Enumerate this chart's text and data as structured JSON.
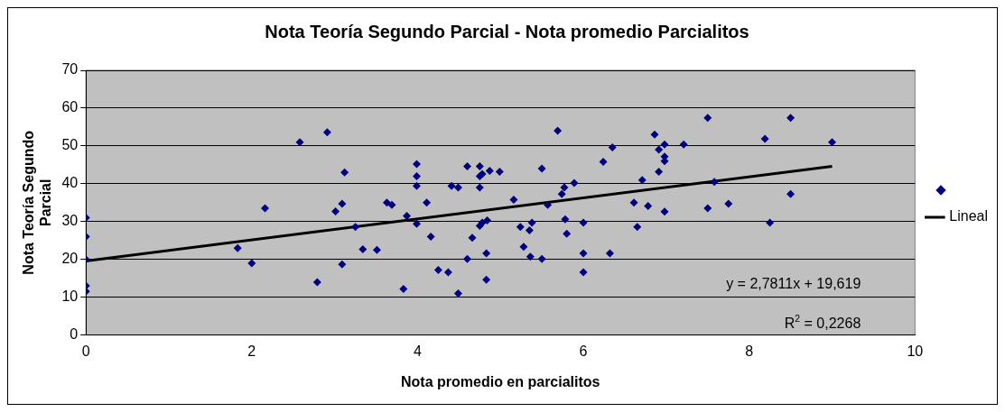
{
  "chart_data": {
    "type": "scatter",
    "title": "Nota Teoría Segundo Parcial - Nota promedio Parcialitos",
    "xlabel": "Nota promedio en parcialitos",
    "ylabel": "Nota Teoría Segundo Parcial",
    "xlim": [
      0,
      10
    ],
    "xticks": [
      0,
      2,
      4,
      6,
      8,
      10
    ],
    "ylim": [
      0,
      70
    ],
    "yticks": [
      0,
      10,
      20,
      30,
      40,
      50,
      60,
      70
    ],
    "grid": "y",
    "legend": "right",
    "marker": "diamond",
    "series": [
      {
        "color": "#000080",
        "x": [
          0,
          0,
          0,
          0,
          0,
          1.83,
          2.0,
          2.16,
          2.58,
          2.91,
          3.12,
          3.09,
          3.01,
          2.79,
          3.09,
          3.25,
          3.34,
          3.51,
          3.63,
          3.69,
          3.83,
          3.87,
          3.99,
          3.99,
          3.99,
          3.99,
          4.11,
          4.16,
          4.25,
          4.37,
          4.41,
          4.49,
          4.49,
          4.6,
          4.6,
          4.66,
          4.75,
          4.75,
          4.75,
          4.78,
          4.87,
          4.75,
          4.78,
          4.84,
          4.83,
          4.83,
          4.99,
          5.16,
          5.24,
          5.28,
          5.35,
          5.38,
          5.36,
          5.5,
          5.5,
          5.57,
          5.69,
          5.74,
          5.77,
          5.89,
          5.78,
          5.8,
          6.0,
          6.0,
          6.0,
          6.24,
          6.35,
          6.32,
          6.61,
          6.65,
          6.71,
          6.78,
          6.86,
          6.91,
          6.91,
          6.98,
          6.98,
          6.98,
          6.98,
          7.21,
          7.5,
          7.5,
          7.58,
          7.75,
          8.19,
          8.25,
          8.5,
          8.5,
          9.0
        ],
        "values": [
          31,
          26,
          20,
          13,
          11.5,
          23,
          19,
          33.5,
          51,
          53.6,
          43,
          34.7,
          32.7,
          14,
          18.7,
          28.6,
          22.7,
          22.5,
          35,
          34.4,
          12.2,
          31.5,
          45.2,
          42,
          39.4,
          29.4,
          35,
          26,
          17.2,
          16.6,
          39.4,
          39,
          11,
          44.6,
          20.1,
          25.7,
          44.6,
          42,
          39,
          42.6,
          43.4,
          28.9,
          29.7,
          30.3,
          21.6,
          14.6,
          43.2,
          35.8,
          28.6,
          23.3,
          27.7,
          29.7,
          20.7,
          20.1,
          44,
          34.4,
          54,
          37.3,
          39,
          40.2,
          30.6,
          26.8,
          29.7,
          21.6,
          16.6,
          45.8,
          49.6,
          21.6,
          35,
          28.6,
          41,
          34.1,
          53,
          43.2,
          49,
          50.4,
          47.2,
          46,
          32.6,
          50.4,
          57.4,
          33.5,
          40.5,
          34.7,
          51.9,
          29.7,
          57.4,
          37.3,
          51
        ]
      },
      {
        "type": "line",
        "name": "Lineal",
        "color": "#000000",
        "marker": "none",
        "x": [
          0,
          9
        ],
        "values": [
          19.6,
          44.6
        ]
      }
    ],
    "annotations": [
      "y = 2,7811x + 19,619",
      "R$^{2}$ = 0,2268"
    ]
  }
}
